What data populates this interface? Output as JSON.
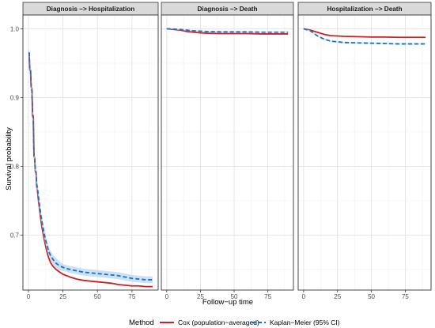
{
  "chart_data": {
    "type": "line",
    "ylabel": "Survival probability",
    "xlabel": "Follow−up time",
    "xlim": [
      -4,
      94
    ],
    "ylim": [
      0.62,
      1.02
    ],
    "x_ticks": [
      "0",
      "25",
      "50",
      "75"
    ],
    "y_ticks": [
      "0.7",
      "0.8",
      "0.9",
      "1.0"
    ],
    "grid": true,
    "legend": {
      "title": "Method",
      "position": "bottom",
      "entries": [
        "Cox (population−averaged)",
        "Kaplan−Meier (95% CI)"
      ]
    },
    "colors": {
      "cox": "#cc1f1f",
      "km": "#1f6fc0",
      "ci_fill": "#b9d7f0"
    },
    "panels": [
      {
        "strip": "Diagnosis −> Hospitalization",
        "series": [
          {
            "name": "Cox (population−averaged)",
            "style": "solid",
            "x": [
              0,
              0.5,
              1,
              1.5,
              2,
              2.5,
              3,
              3.5,
              4,
              4.5,
              5,
              5.5,
              6,
              6.5,
              7,
              8,
              9,
              10,
              11,
              12,
              13,
              14,
              15,
              16,
              18,
              20,
              22,
              25,
              30,
              35,
              40,
              45,
              50,
              55,
              60,
              65,
              70,
              75,
              80,
              85,
              90
            ],
            "y": [
              0.965,
              0.965,
              0.94,
              0.94,
              0.915,
              0.913,
              0.875,
              0.873,
              0.815,
              0.812,
              0.792,
              0.79,
              0.77,
              0.765,
              0.755,
              0.738,
              0.722,
              0.709,
              0.698,
              0.688,
              0.679,
              0.671,
              0.665,
              0.66,
              0.654,
              0.65,
              0.647,
              0.643,
              0.639,
              0.636,
              0.634,
              0.633,
              0.632,
              0.631,
              0.63,
              0.628,
              0.627,
              0.626,
              0.626,
              0.625,
              0.625
            ]
          },
          {
            "name": "Kaplan−Meier (95% CI)",
            "style": "dashed",
            "x": [
              0,
              0.5,
              1,
              1.5,
              2,
              2.5,
              3,
              3.5,
              4,
              4.5,
              5,
              5.5,
              6,
              6.5,
              7,
              8,
              9,
              10,
              11,
              12,
              13,
              14,
              15,
              16,
              18,
              20,
              22,
              25,
              30,
              35,
              40,
              45,
              50,
              55,
              60,
              65,
              70,
              75,
              80,
              85,
              90
            ],
            "y": [
              0.965,
              0.965,
              0.94,
              0.94,
              0.913,
              0.91,
              0.873,
              0.87,
              0.815,
              0.81,
              0.795,
              0.792,
              0.773,
              0.77,
              0.76,
              0.744,
              0.729,
              0.717,
              0.706,
              0.696,
              0.688,
              0.681,
              0.675,
              0.67,
              0.664,
              0.659,
              0.656,
              0.653,
              0.65,
              0.648,
              0.646,
              0.645,
              0.644,
              0.643,
              0.642,
              0.641,
              0.639,
              0.637,
              0.636,
              0.635,
              0.635
            ],
            "ci_lower": [
              0.96,
              0.96,
              0.934,
              0.934,
              0.906,
              0.903,
              0.866,
              0.863,
              0.808,
              0.803,
              0.788,
              0.785,
              0.766,
              0.763,
              0.753,
              0.737,
              0.722,
              0.71,
              0.699,
              0.689,
              0.681,
              0.674,
              0.668,
              0.663,
              0.657,
              0.652,
              0.649,
              0.648,
              0.645,
              0.643,
              0.641,
              0.64,
              0.639,
              0.638,
              0.637,
              0.636,
              0.634,
              0.632,
              0.631,
              0.63,
              0.63
            ],
            "ci_upper": [
              0.97,
              0.97,
              0.946,
              0.946,
              0.92,
              0.917,
              0.88,
              0.877,
              0.822,
              0.817,
              0.802,
              0.799,
              0.78,
              0.777,
              0.767,
              0.751,
              0.736,
              0.724,
              0.713,
              0.703,
              0.695,
              0.688,
              0.682,
              0.677,
              0.671,
              0.666,
              0.663,
              0.658,
              0.655,
              0.653,
              0.651,
              0.65,
              0.649,
              0.648,
              0.647,
              0.646,
              0.644,
              0.642,
              0.641,
              0.64,
              0.64
            ]
          }
        ]
      },
      {
        "strip": "Diagnosis −> Death",
        "series": [
          {
            "name": "Cox (population−averaged)",
            "style": "solid",
            "x": [
              0,
              5,
              10,
              15,
              20,
              25,
              30,
              40,
              50,
              60,
              70,
              80,
              90
            ],
            "y": [
              1.0,
              0.999,
              0.998,
              0.996,
              0.995,
              0.994,
              0.9935,
              0.993,
              0.993,
              0.993,
              0.9925,
              0.9925,
              0.9925
            ]
          },
          {
            "name": "Kaplan−Meier (95% CI)",
            "style": "dashed",
            "x": [
              0,
              5,
              10,
              15,
              20,
              25,
              30,
              40,
              50,
              60,
              70,
              80,
              90
            ],
            "y": [
              1.0,
              0.9995,
              0.999,
              0.998,
              0.997,
              0.9965,
              0.996,
              0.9955,
              0.9955,
              0.9955,
              0.995,
              0.995,
              0.995
            ],
            "ci_lower": [
              1.0,
              0.999,
              0.998,
              0.997,
              0.996,
              0.9955,
              0.995,
              0.9945,
              0.9945,
              0.9945,
              0.994,
              0.994,
              0.994
            ],
            "ci_upper": [
              1.0,
              1.0,
              1.0,
              0.999,
              0.998,
              0.9975,
              0.997,
              0.9965,
              0.9965,
              0.9965,
              0.996,
              0.996,
              0.996
            ]
          }
        ]
      },
      {
        "strip": "Hospitalization −> Death",
        "series": [
          {
            "name": "Cox (population−averaged)",
            "style": "solid",
            "x": [
              0,
              5,
              10,
              15,
              20,
              25,
              30,
              40,
              50,
              60,
              70,
              80,
              90
            ],
            "y": [
              1.0,
              0.998,
              0.995,
              0.992,
              0.99,
              0.9895,
              0.989,
              0.9885,
              0.988,
              0.988,
              0.9875,
              0.9875,
              0.9875
            ]
          },
          {
            "name": "Kaplan−Meier (95% CI)",
            "style": "dashed",
            "x": [
              0,
              5,
              10,
              15,
              20,
              25,
              30,
              40,
              50,
              60,
              70,
              80,
              90
            ],
            "y": [
              1.0,
              0.997,
              0.99,
              0.985,
              0.982,
              0.981,
              0.98,
              0.9795,
              0.979,
              0.9785,
              0.978,
              0.978,
              0.978
            ],
            "ci_lower": [
              1.0,
              0.996,
              0.989,
              0.984,
              0.981,
              0.98,
              0.979,
              0.9785,
              0.978,
              0.9775,
              0.977,
              0.977,
              0.977
            ],
            "ci_upper": [
              1.0,
              0.998,
              0.991,
              0.986,
              0.983,
              0.982,
              0.981,
              0.9805,
              0.98,
              0.9795,
              0.979,
              0.979,
              0.979
            ]
          }
        ]
      }
    ]
  }
}
